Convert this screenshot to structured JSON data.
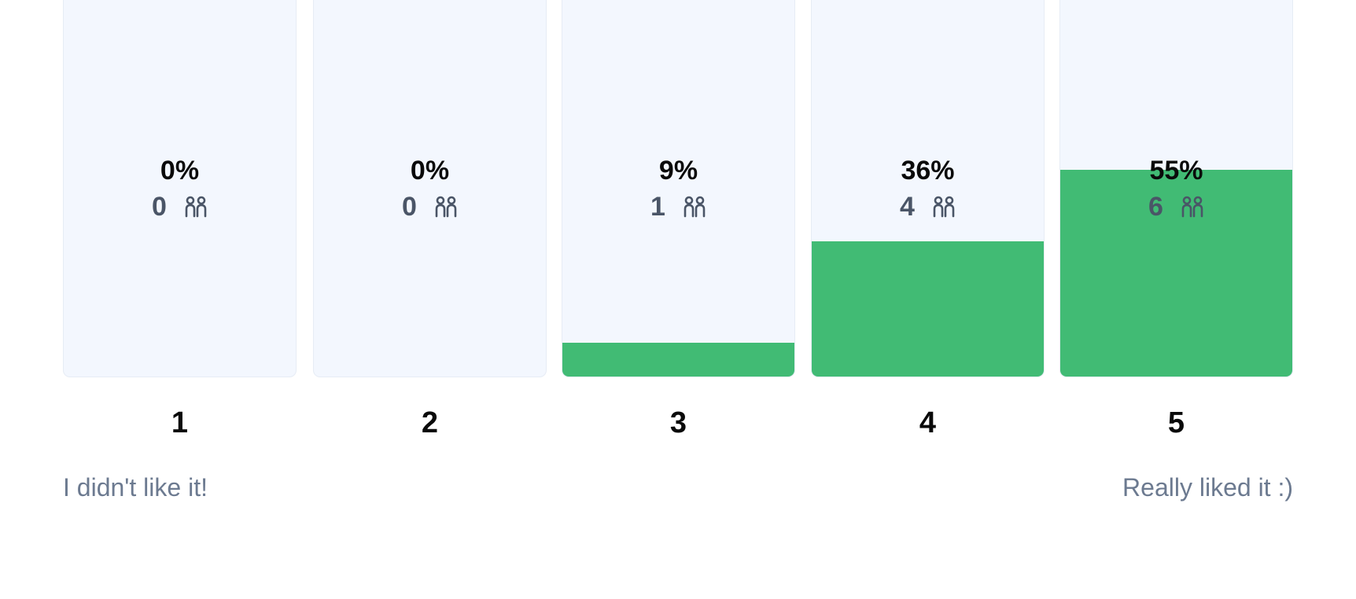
{
  "chart_data": {
    "type": "bar",
    "categories": [
      "1",
      "2",
      "3",
      "4",
      "5"
    ],
    "percentages": [
      "0%",
      "0%",
      "9%",
      "36%",
      "55%"
    ],
    "counts": [
      "0",
      "0",
      "1",
      "4",
      "6"
    ],
    "values": [
      0,
      0,
      9,
      36,
      55
    ],
    "ylim": [
      0,
      100
    ],
    "colors": {
      "fill": "#41bb74",
      "track": "#f3f7fe"
    },
    "icon": "people-icon"
  },
  "scale": {
    "min_label": "I didn't like it!",
    "max_label": "Really liked it :)"
  }
}
